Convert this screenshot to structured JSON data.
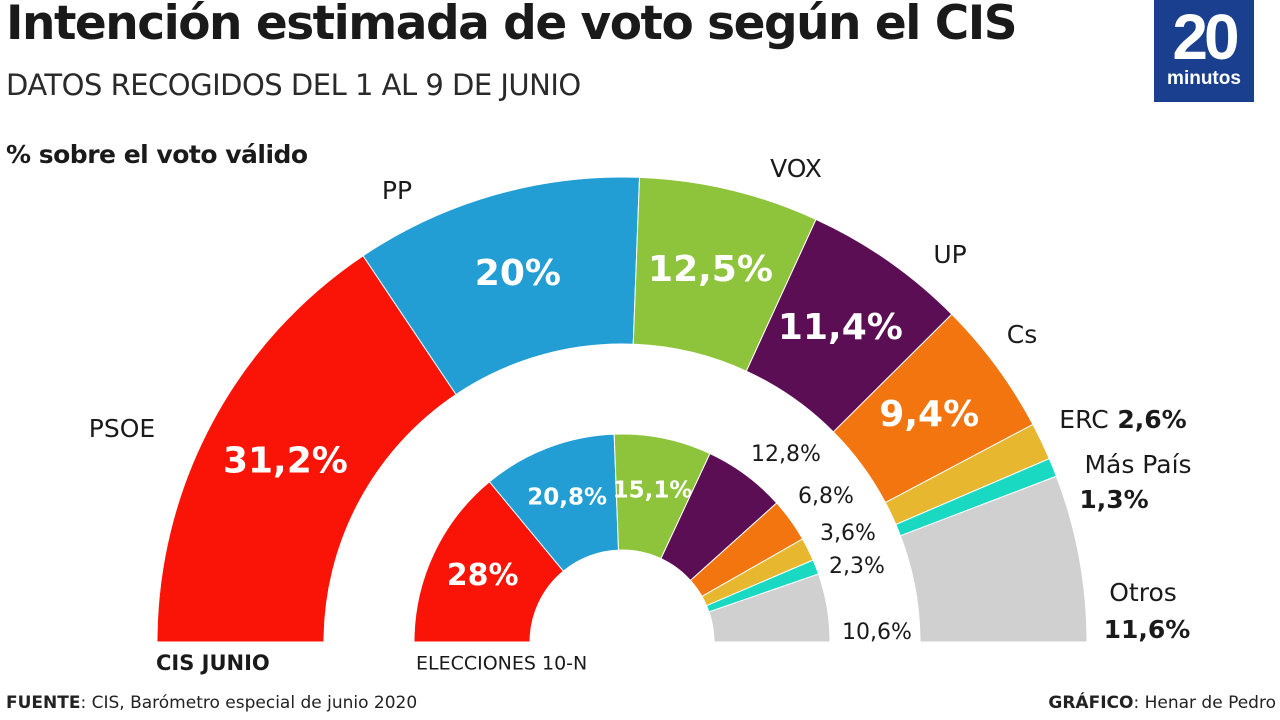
{
  "header": {
    "title": "Intención estimada de voto según el CIS",
    "subtitle": "DATOS RECOGIDOS DEL 1 AL 9 DE JUNIO",
    "unit_note": "% sobre el voto válido"
  },
  "logo": {
    "number": "20",
    "word": "minutos",
    "color": "#1b3f8f"
  },
  "footer": {
    "source_label": "FUENTE",
    "source_text": ": CIS, Barómetro especial de junio 2020",
    "credit_label": "GRÁFICO",
    "credit_text": ": Henar de Pedro"
  },
  "chart_data": {
    "type": "pie",
    "subtype": "semicircle-donut",
    "unit": "%",
    "rings": [
      {
        "name": "CIS JUNIO",
        "slices": [
          {
            "party": "PSOE",
            "value": 31.2,
            "label": "31,2%",
            "color": "#fa1407"
          },
          {
            "party": "PP",
            "value": 20.0,
            "label": "20%",
            "color": "#239ed4"
          },
          {
            "party": "VOX",
            "value": 12.5,
            "label": "12,5%",
            "color": "#8ec43c"
          },
          {
            "party": "UP",
            "value": 11.4,
            "label": "11,4%",
            "color": "#5c0e54"
          },
          {
            "party": "Cs",
            "value": 9.4,
            "label": "9,4%",
            "color": "#f27510"
          },
          {
            "party": "ERC",
            "value": 2.6,
            "label": "2,6%",
            "color": "#e8b730"
          },
          {
            "party": "Más País",
            "value": 1.3,
            "label": "1,3%",
            "color": "#1ad9c3"
          },
          {
            "party": "Otros",
            "value": 11.6,
            "label": "11,6%",
            "color": "#d0d0d0"
          }
        ]
      },
      {
        "name": "ELECCIONES 10-N",
        "slices": [
          {
            "party": "PSOE",
            "value": 28.0,
            "label": "28%",
            "color": "#fa1407"
          },
          {
            "party": "PP",
            "value": 20.8,
            "label": "20,8%",
            "color": "#239ed4"
          },
          {
            "party": "VOX",
            "value": 15.1,
            "label": "15,1%",
            "color": "#8ec43c"
          },
          {
            "party": "UP",
            "value": 12.8,
            "label": "12,8%",
            "color": "#5c0e54"
          },
          {
            "party": "Cs",
            "value": 6.8,
            "label": "6,8%",
            "color": "#f27510"
          },
          {
            "party": "ERC",
            "value": 3.6,
            "label": "3,6%",
            "color": "#e8b730"
          },
          {
            "party": "Más País",
            "value": 2.3,
            "label": "2,3%",
            "color": "#1ad9c3"
          },
          {
            "party": "Otros",
            "value": 10.6,
            "label": "10,6%",
            "color": "#d0d0d0"
          }
        ]
      }
    ]
  }
}
